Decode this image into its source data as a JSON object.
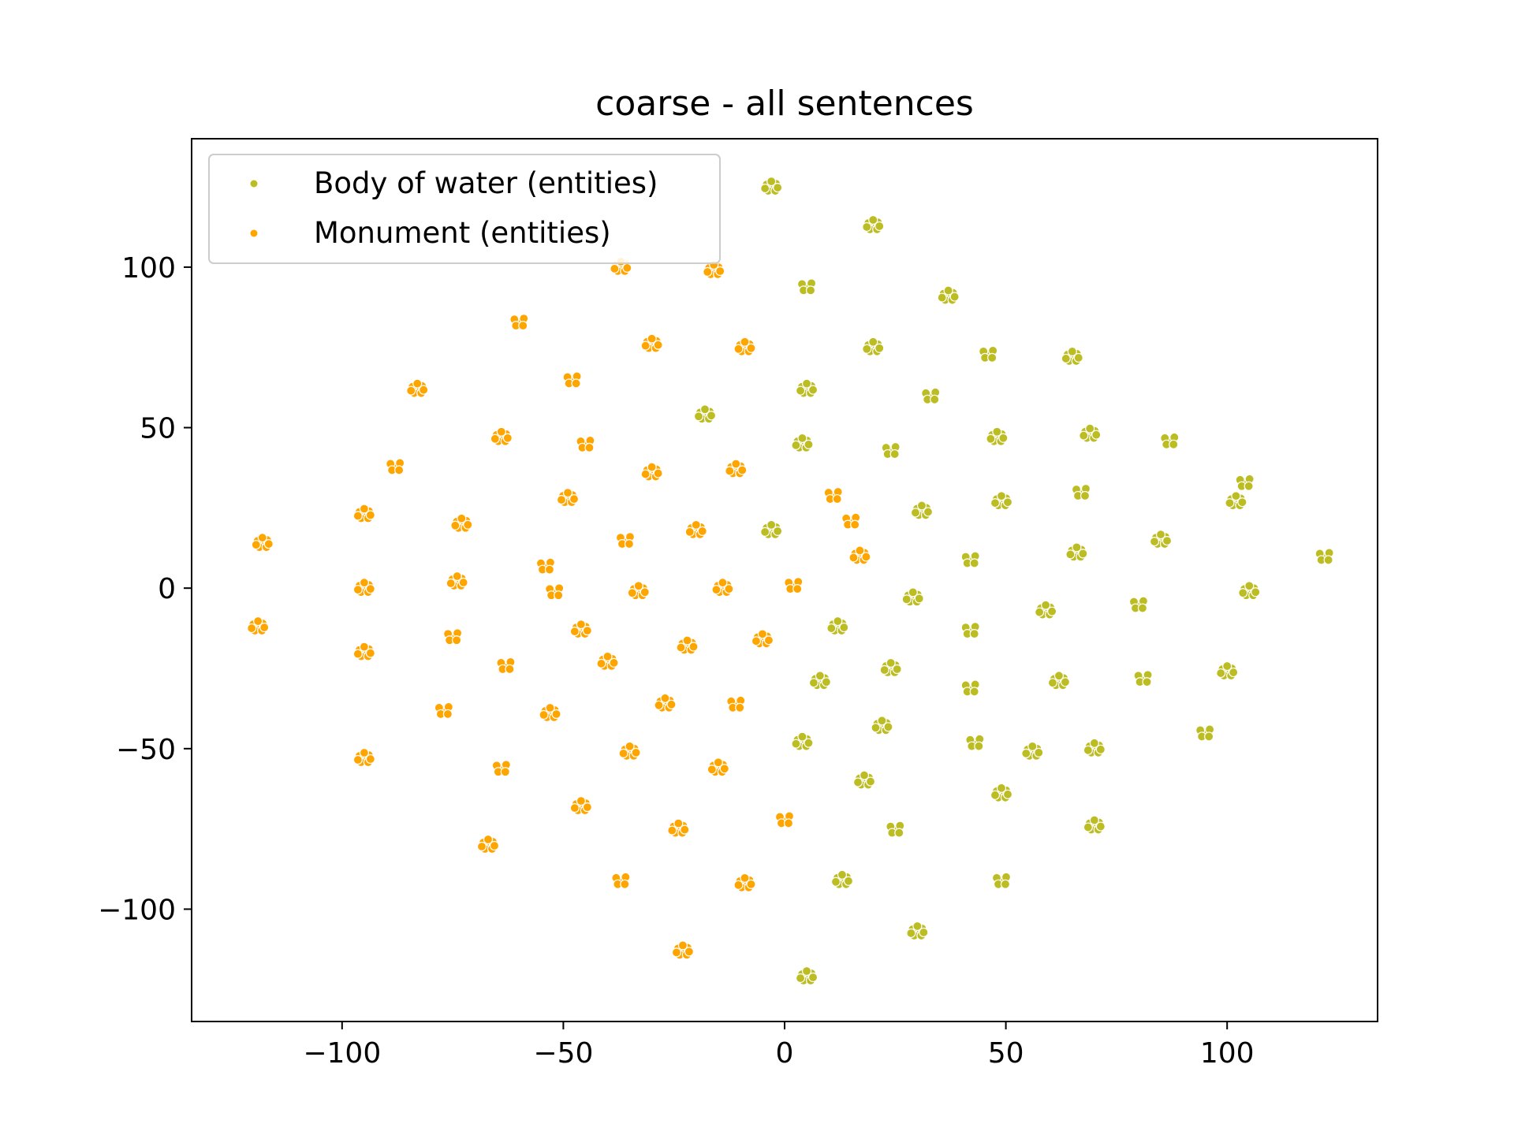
{
  "chart_data": {
    "type": "scatter",
    "title": "coarse - all sentences",
    "xlabel": "",
    "ylabel": "",
    "xlim": [
      -134,
      134
    ],
    "ylim": [
      -135,
      140
    ],
    "xticks": [
      -100,
      -50,
      0,
      50,
      100
    ],
    "yticks": [
      -100,
      -50,
      0,
      50,
      100
    ],
    "xtick_labels": [
      "−100",
      "−50",
      "0",
      "50",
      "100"
    ],
    "ytick_labels": [
      "−100",
      "−50",
      "0",
      "50",
      "100"
    ],
    "grid": false,
    "legend_position": "top-left",
    "series": [
      {
        "name": "Body of water (entities)",
        "color": "#bcbd22",
        "x": [
          -3,
          20,
          5,
          37,
          20,
          46,
          65,
          5,
          33,
          -18,
          4,
          24,
          48,
          69,
          87,
          31,
          49,
          67,
          102,
          -3,
          42,
          66,
          85,
          122,
          29,
          59,
          80,
          105,
          12,
          42,
          24,
          62,
          81,
          100,
          8,
          42,
          22,
          4,
          43,
          56,
          70,
          95,
          18,
          49,
          25,
          70,
          13,
          49,
          30,
          5,
          104
        ],
        "y": [
          125,
          113,
          94,
          91,
          75,
          73,
          72,
          62,
          60,
          54,
          45,
          43,
          47,
          48,
          46,
          24,
          27,
          30,
          27,
          18,
          9,
          11,
          15,
          10,
          -3,
          -7,
          -5,
          -1,
          -12,
          -13,
          -25,
          -29,
          -28,
          -26,
          -29,
          -31,
          -43,
          -48,
          -48,
          -51,
          -50,
          -45,
          -60,
          -64,
          -75,
          -74,
          -91,
          -91,
          -107,
          -121,
          33
        ]
      },
      {
        "name": "Monument (entities)",
        "color": "#ffa500",
        "x": [
          -37,
          -16,
          -60,
          -30,
          -9,
          -48,
          -83,
          -64,
          -45,
          -30,
          -11,
          -88,
          -95,
          -49,
          11,
          -118,
          -73,
          -36,
          -20,
          17,
          -54,
          -33,
          -14,
          2,
          -95,
          -74,
          -52,
          -119,
          -46,
          -75,
          -5,
          -95,
          -63,
          -40,
          -22,
          -77,
          -53,
          -27,
          -11,
          -95,
          -35,
          -64,
          -15,
          -46,
          0,
          -67,
          -24,
          -37,
          -9,
          -23,
          15
        ],
        "y": [
          100,
          99,
          83,
          76,
          75,
          65,
          62,
          47,
          45,
          36,
          37,
          38,
          23,
          28,
          29,
          14,
          20,
          15,
          18,
          10,
          7,
          -1,
          0,
          1,
          0,
          2,
          -1,
          -12,
          -13,
          -15,
          -16,
          -20,
          -24,
          -23,
          -18,
          -38,
          -39,
          -36,
          -36,
          -53,
          -51,
          -56,
          -56,
          -68,
          -72,
          -80,
          -75,
          -91,
          -92,
          -113,
          21
        ]
      }
    ]
  }
}
